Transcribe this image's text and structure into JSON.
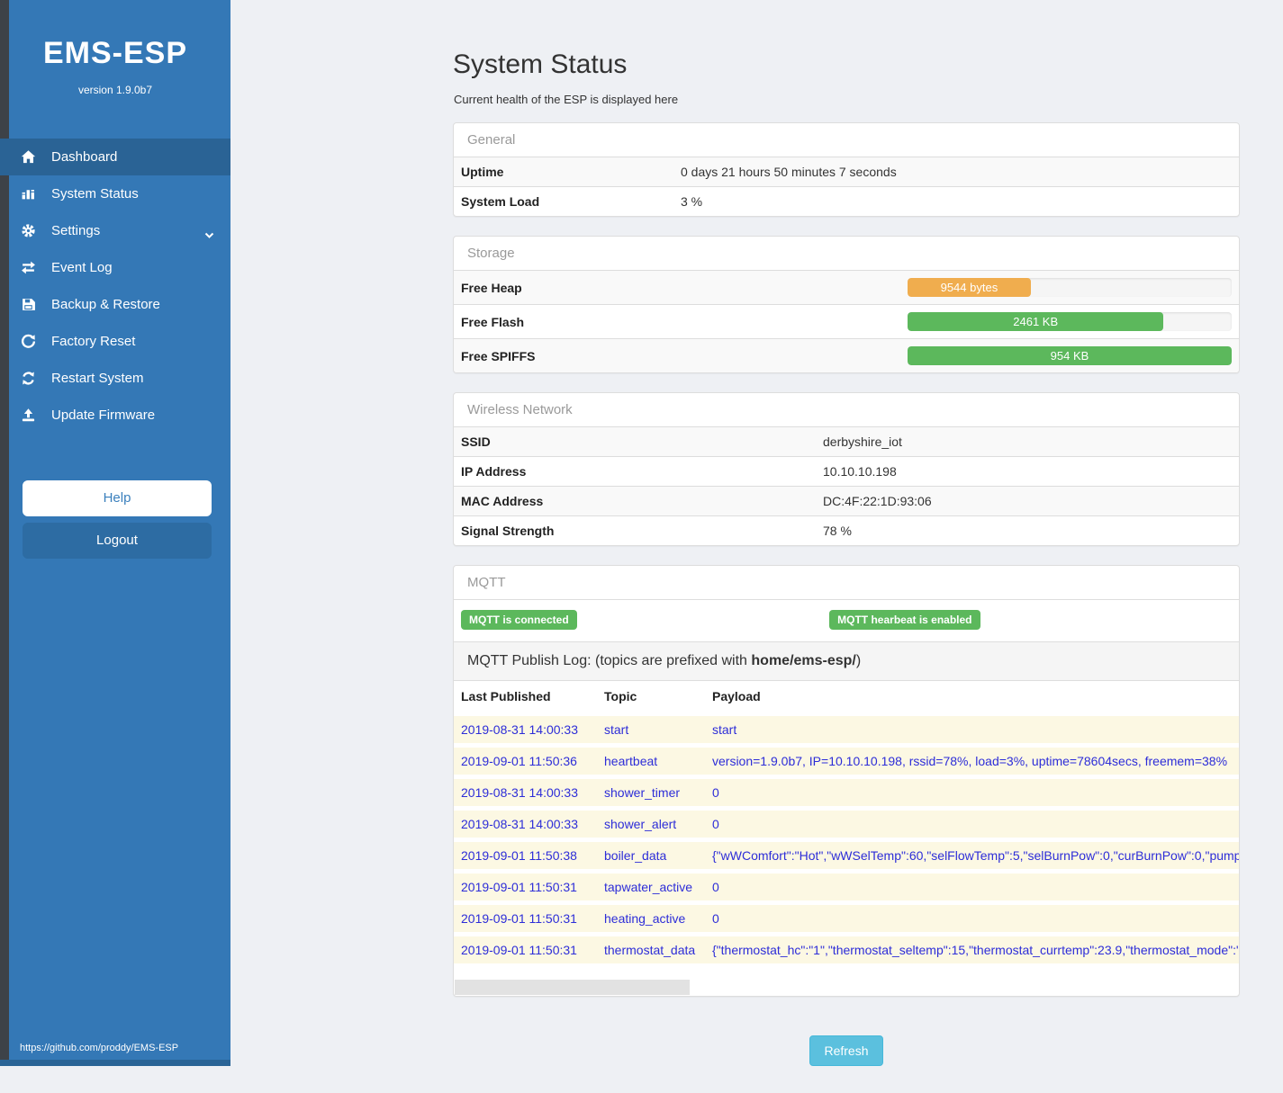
{
  "sidebar": {
    "brand": "EMS-ESP",
    "version": "version 1.9.0b7",
    "items": [
      {
        "label": "Dashboard",
        "icon": "home-icon",
        "active": true
      },
      {
        "label": "System Status",
        "icon": "status-icon",
        "active": false
      },
      {
        "label": "Settings",
        "icon": "gear-icon",
        "active": false,
        "has_submenu": true
      },
      {
        "label": "Event Log",
        "icon": "exchange-icon",
        "active": false
      },
      {
        "label": "Backup & Restore",
        "icon": "save-icon",
        "active": false
      },
      {
        "label": "Factory Reset",
        "icon": "undo-icon",
        "active": false
      },
      {
        "label": "Restart System",
        "icon": "refresh-icon",
        "active": false
      },
      {
        "label": "Update Firmware",
        "icon": "upload-icon",
        "active": false
      }
    ],
    "help_label": "Help",
    "logout_label": "Logout",
    "footer_link": "https://github.com/proddy/EMS-ESP"
  },
  "page": {
    "title": "System Status",
    "subtitle": "Current health of the ESP is displayed here"
  },
  "general": {
    "heading": "General",
    "rows": [
      {
        "label": "Uptime",
        "value": "0 days 21 hours 50 minutes 7 seconds"
      },
      {
        "label": "System Load",
        "value": "3 %"
      }
    ]
  },
  "storage": {
    "heading": "Storage",
    "rows": [
      {
        "label": "Free Heap",
        "bar_label": "9544 bytes",
        "percent": 38,
        "color": "#f0ad4e"
      },
      {
        "label": "Free Flash",
        "bar_label": "2461 KB",
        "percent": 79,
        "color": "#5cb85c"
      },
      {
        "label": "Free SPIFFS",
        "bar_label": "954 KB",
        "percent": 100,
        "color": "#5cb85c"
      }
    ]
  },
  "wireless": {
    "heading": "Wireless Network",
    "rows": [
      {
        "label": "SSID",
        "value": "derbyshire_iot"
      },
      {
        "label": "IP Address",
        "value": "10.10.10.198"
      },
      {
        "label": "MAC Address",
        "value": "DC:4F:22:1D:93:06"
      },
      {
        "label": "Signal Strength",
        "value": "78 %"
      }
    ]
  },
  "mqtt": {
    "heading": "MQTT",
    "badges": [
      "MQTT is connected",
      "MQTT hearbeat is enabled"
    ],
    "publish_log": {
      "prefix": "MQTT Publish Log: (topics are prefixed with ",
      "bold": "home/ems-esp/",
      "suffix": ")"
    },
    "table": {
      "headers": [
        "Last Published",
        "Topic",
        "Payload"
      ],
      "rows": [
        [
          "2019-08-31 14:00:33",
          "start",
          "start"
        ],
        [
          "2019-09-01 11:50:36",
          "heartbeat",
          "version=1.9.0b7, IP=10.10.10.198, rssid=78%, load=3%, uptime=78604secs, freemem=38%"
        ],
        [
          "2019-08-31 14:00:33",
          "shower_timer",
          "0"
        ],
        [
          "2019-08-31 14:00:33",
          "shower_alert",
          "0"
        ],
        [
          "2019-09-01 11:50:38",
          "boiler_data",
          "{\"wWComfort\":\"Hot\",\"wWSelTemp\":60,\"selFlowTemp\":5,\"selBurnPow\":0,\"curBurnPow\":0,\"pump"
        ],
        [
          "2019-09-01 11:50:31",
          "tapwater_active",
          "0"
        ],
        [
          "2019-09-01 11:50:31",
          "heating_active",
          "0"
        ],
        [
          "2019-09-01 11:50:31",
          "thermostat_data",
          "{\"thermostat_hc\":\"1\",\"thermostat_seltemp\":15,\"thermostat_currtemp\":23.9,\"thermostat_mode\":\""
        ]
      ]
    }
  },
  "refresh_label": "Refresh",
  "colors": {
    "sidebar_blue": "#3478b6",
    "sidebar_active": "#2a6395",
    "edge_strip": "#3d4248",
    "success_green": "#5cb85c",
    "warning_orange": "#f0ad4e",
    "info_blue": "#5bc0de",
    "log_text_blue": "#2d2dd8",
    "log_row_cream": "#fcf8e3"
  }
}
